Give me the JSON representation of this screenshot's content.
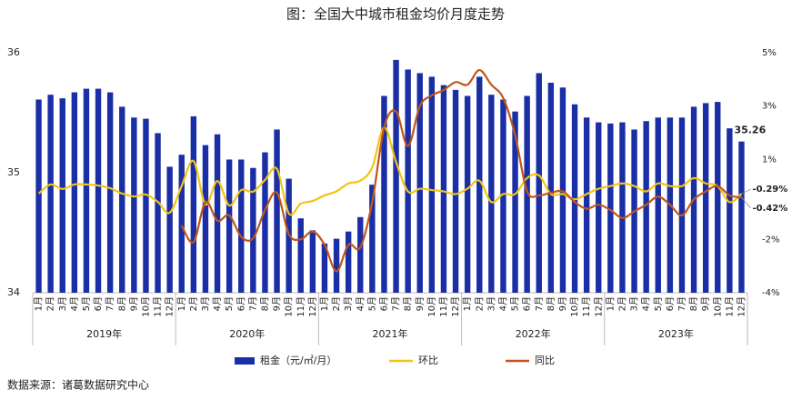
{
  "chart_data": {
    "type": "bar_line",
    "title": "图：全国大中城市租金均价月度走势",
    "source": "数据来源：诸葛数据研究中心",
    "categories": [
      "1月",
      "2月",
      "3月",
      "4月",
      "5月",
      "6月",
      "7月",
      "8月",
      "9月",
      "10月",
      "11月",
      "12月",
      "1月",
      "2月",
      "3月",
      "4月",
      "5月",
      "6月",
      "7月",
      "8月",
      "9月",
      "10月",
      "11月",
      "12月",
      "1月",
      "2月",
      "3月",
      "4月",
      "5月",
      "6月",
      "7月",
      "8月",
      "9月",
      "10月",
      "11月",
      "12月",
      "1月",
      "2月",
      "3月",
      "4月",
      "5月",
      "6月",
      "7月",
      "8月",
      "9月",
      "10月",
      "11月",
      "12月",
      "1月",
      "2月",
      "3月",
      "4月",
      "5月",
      "6月",
      "7月",
      "8月",
      "9月",
      "10月",
      "11月",
      "12月"
    ],
    "years": [
      "2019年",
      "2020年",
      "2021年",
      "2022年",
      "2023年"
    ],
    "ylim": [
      34,
      36
    ],
    "yticks": [
      34,
      35,
      36
    ],
    "y2lim": [
      -4,
      5
    ],
    "y2ticks": [
      {
        "value": 5,
        "label": "5%"
      },
      {
        "value": 3,
        "label": "3%"
      },
      {
        "value": 1,
        "label": "1%"
      },
      {
        "value": -2,
        "label": "-2%"
      },
      {
        "value": -4,
        "label": "-4%"
      }
    ],
    "series": [
      {
        "name": "租金（元/㎡/月）",
        "type": "bar",
        "color": "#1a2ea6",
        "values": [
          35.61,
          35.65,
          35.62,
          35.67,
          35.7,
          35.7,
          35.67,
          35.55,
          35.46,
          35.45,
          35.33,
          35.05,
          35.15,
          35.47,
          35.23,
          35.32,
          35.11,
          35.11,
          35.04,
          35.17,
          35.36,
          34.95,
          34.62,
          34.52,
          34.41,
          34.45,
          34.51,
          34.63,
          34.9,
          35.64,
          35.94,
          35.86,
          35.83,
          35.8,
          35.73,
          35.69,
          35.64,
          35.8,
          35.65,
          35.61,
          35.51,
          35.64,
          35.83,
          35.75,
          35.71,
          35.57,
          35.46,
          35.42,
          35.41,
          35.42,
          35.36,
          35.43,
          35.46,
          35.46,
          35.46,
          35.55,
          35.58,
          35.59,
          35.37,
          35.26
        ],
        "value_labels": [
          null,
          null,
          null,
          null,
          null,
          null,
          null,
          null,
          null,
          null,
          null,
          null,
          null,
          null,
          null,
          null,
          null,
          null,
          null,
          null,
          null,
          null,
          null,
          null,
          null,
          null,
          null,
          null,
          null,
          null,
          null,
          null,
          null,
          null,
          null,
          null,
          null,
          null,
          null,
          null,
          null,
          null,
          null,
          null,
          null,
          null,
          null,
          null,
          null,
          null,
          null,
          null,
          null,
          null,
          null,
          null,
          null,
          null,
          null,
          "35.26"
        ]
      },
      {
        "name": "环比",
        "type": "line",
        "axis": "y2",
        "color": "#f2c414",
        "values": [
          -0.28,
          0.06,
          -0.11,
          0.06,
          0.06,
          0.02,
          -0.08,
          -0.28,
          -0.39,
          -0.32,
          -0.59,
          -1.0,
          0,
          0.94,
          -0.69,
          0.19,
          -0.73,
          -0.15,
          -0.21,
          0.23,
          0.64,
          -1.03,
          -0.66,
          -0.56,
          -0.35,
          -0.2,
          0.1,
          0.2,
          0.7,
          2.2,
          0.9,
          -0.2,
          -0.1,
          -0.15,
          -0.2,
          -0.3,
          -0.1,
          0.2,
          -0.6,
          -0.3,
          -0.3,
          0.3,
          0.4,
          -0.3,
          -0.3,
          -0.5,
          -0.3,
          -0.1,
          0,
          0.1,
          0,
          -0.2,
          0.1,
          0,
          0,
          0.3,
          0.1,
          0,
          -0.6,
          -0.29
        ],
        "value_labels": [
          null,
          null,
          null,
          null,
          null,
          null,
          null,
          null,
          null,
          null,
          null,
          null,
          null,
          null,
          null,
          null,
          null,
          null,
          null,
          null,
          null,
          null,
          null,
          null,
          null,
          null,
          null,
          null,
          null,
          null,
          null,
          null,
          null,
          null,
          null,
          null,
          null,
          null,
          null,
          null,
          null,
          null,
          null,
          null,
          null,
          null,
          null,
          null,
          null,
          null,
          null,
          null,
          null,
          null,
          null,
          null,
          null,
          null,
          null,
          "-0.29%"
        ]
      },
      {
        "name": "同比",
        "type": "line",
        "axis": "y2",
        "color": "#c0561a",
        "values": [
          null,
          null,
          null,
          null,
          null,
          null,
          null,
          null,
          null,
          null,
          null,
          null,
          -1.48,
          -2.1,
          -0.6,
          -1.3,
          -1.1,
          -1.9,
          -1.96,
          -0.9,
          -0.25,
          -1.8,
          -2.0,
          -1.7,
          -2.2,
          -3.2,
          -2.2,
          -2.3,
          -0.6,
          2.2,
          2.8,
          1.5,
          3.0,
          3.4,
          3.6,
          3.9,
          3.8,
          4.35,
          3.8,
          3.3,
          1.9,
          -0.2,
          -0.35,
          -0.25,
          -0.2,
          -0.6,
          -0.85,
          -0.7,
          -0.9,
          -1.2,
          -0.95,
          -0.7,
          -0.4,
          -0.7,
          -1.1,
          -0.5,
          -0.2,
          0.0,
          -0.35,
          -0.42
        ],
        "value_labels": [
          null,
          null,
          null,
          null,
          null,
          null,
          null,
          null,
          null,
          null,
          null,
          null,
          null,
          null,
          null,
          null,
          null,
          null,
          null,
          null,
          null,
          null,
          null,
          null,
          null,
          null,
          null,
          null,
          null,
          null,
          null,
          null,
          null,
          null,
          null,
          null,
          null,
          null,
          null,
          null,
          null,
          null,
          null,
          null,
          null,
          null,
          null,
          null,
          null,
          null,
          null,
          null,
          null,
          null,
          null,
          null,
          null,
          null,
          null,
          "-0.42%"
        ]
      }
    ]
  }
}
